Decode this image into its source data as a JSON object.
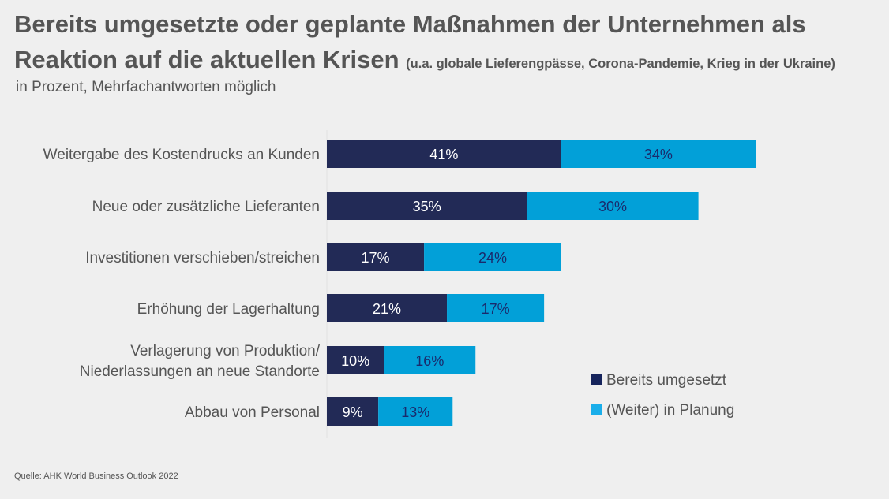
{
  "header": {
    "title_line1": "Bereits umgesetzte oder geplante Maßnahmen der Unternehmen als",
    "title_line2": "Reaktion auf die aktuellen Krisen",
    "title_note": "(u.a. globale Lieferengpässe, Corona-Pandemie, Krieg in der Ukraine)",
    "subtitle": "in Prozent, Mehrfachantworten möglich"
  },
  "footer": {
    "source": "Quelle: AHK World Business Outlook 2022"
  },
  "colors": {
    "implemented": "#222a56",
    "planned": "#02a0d8",
    "implemented_label": "#ffffff",
    "planned_label": "#1a2a6c",
    "text": "#555555"
  },
  "chart_data": {
    "type": "bar",
    "orientation": "horizontal",
    "stacked": true,
    "title": "Bereits umgesetzte oder geplante Maßnahmen der Unternehmen als Reaktion auf die aktuellen Krisen",
    "subtitle": "in Prozent, Mehrfachantworten möglich",
    "categories": [
      [
        "Weitergabe des Kostendrucks an Kunden"
      ],
      [
        "Neue oder zusätzliche Lieferanten"
      ],
      [
        "Investitionen verschieben/streichen"
      ],
      [
        "Erhöhung der Lagerhaltung"
      ],
      [
        "Verlagerung von Produktion/",
        "Niederlassungen an neue Standorte"
      ],
      [
        "Abbau von Personal"
      ]
    ],
    "series": [
      {
        "name": "Bereits umgesetzt",
        "values": [
          41,
          35,
          17,
          21,
          10,
          9
        ]
      },
      {
        "name": "(Weiter) in Planung",
        "values": [
          34,
          30,
          24,
          17,
          16,
          13
        ]
      }
    ],
    "data_labels": [
      [
        "41%",
        "35%",
        "17%",
        "21%",
        "10%",
        "9%"
      ],
      [
        "34%",
        "30%",
        "24%",
        "17%",
        "16%",
        "13%"
      ]
    ],
    "xlabel": "",
    "ylabel": "",
    "xlim": [
      0,
      80
    ],
    "grid": false,
    "legend": {
      "position": "bottom-right",
      "entries": [
        "Bereits umgesetzt",
        "(Weiter) in Planung"
      ]
    }
  }
}
